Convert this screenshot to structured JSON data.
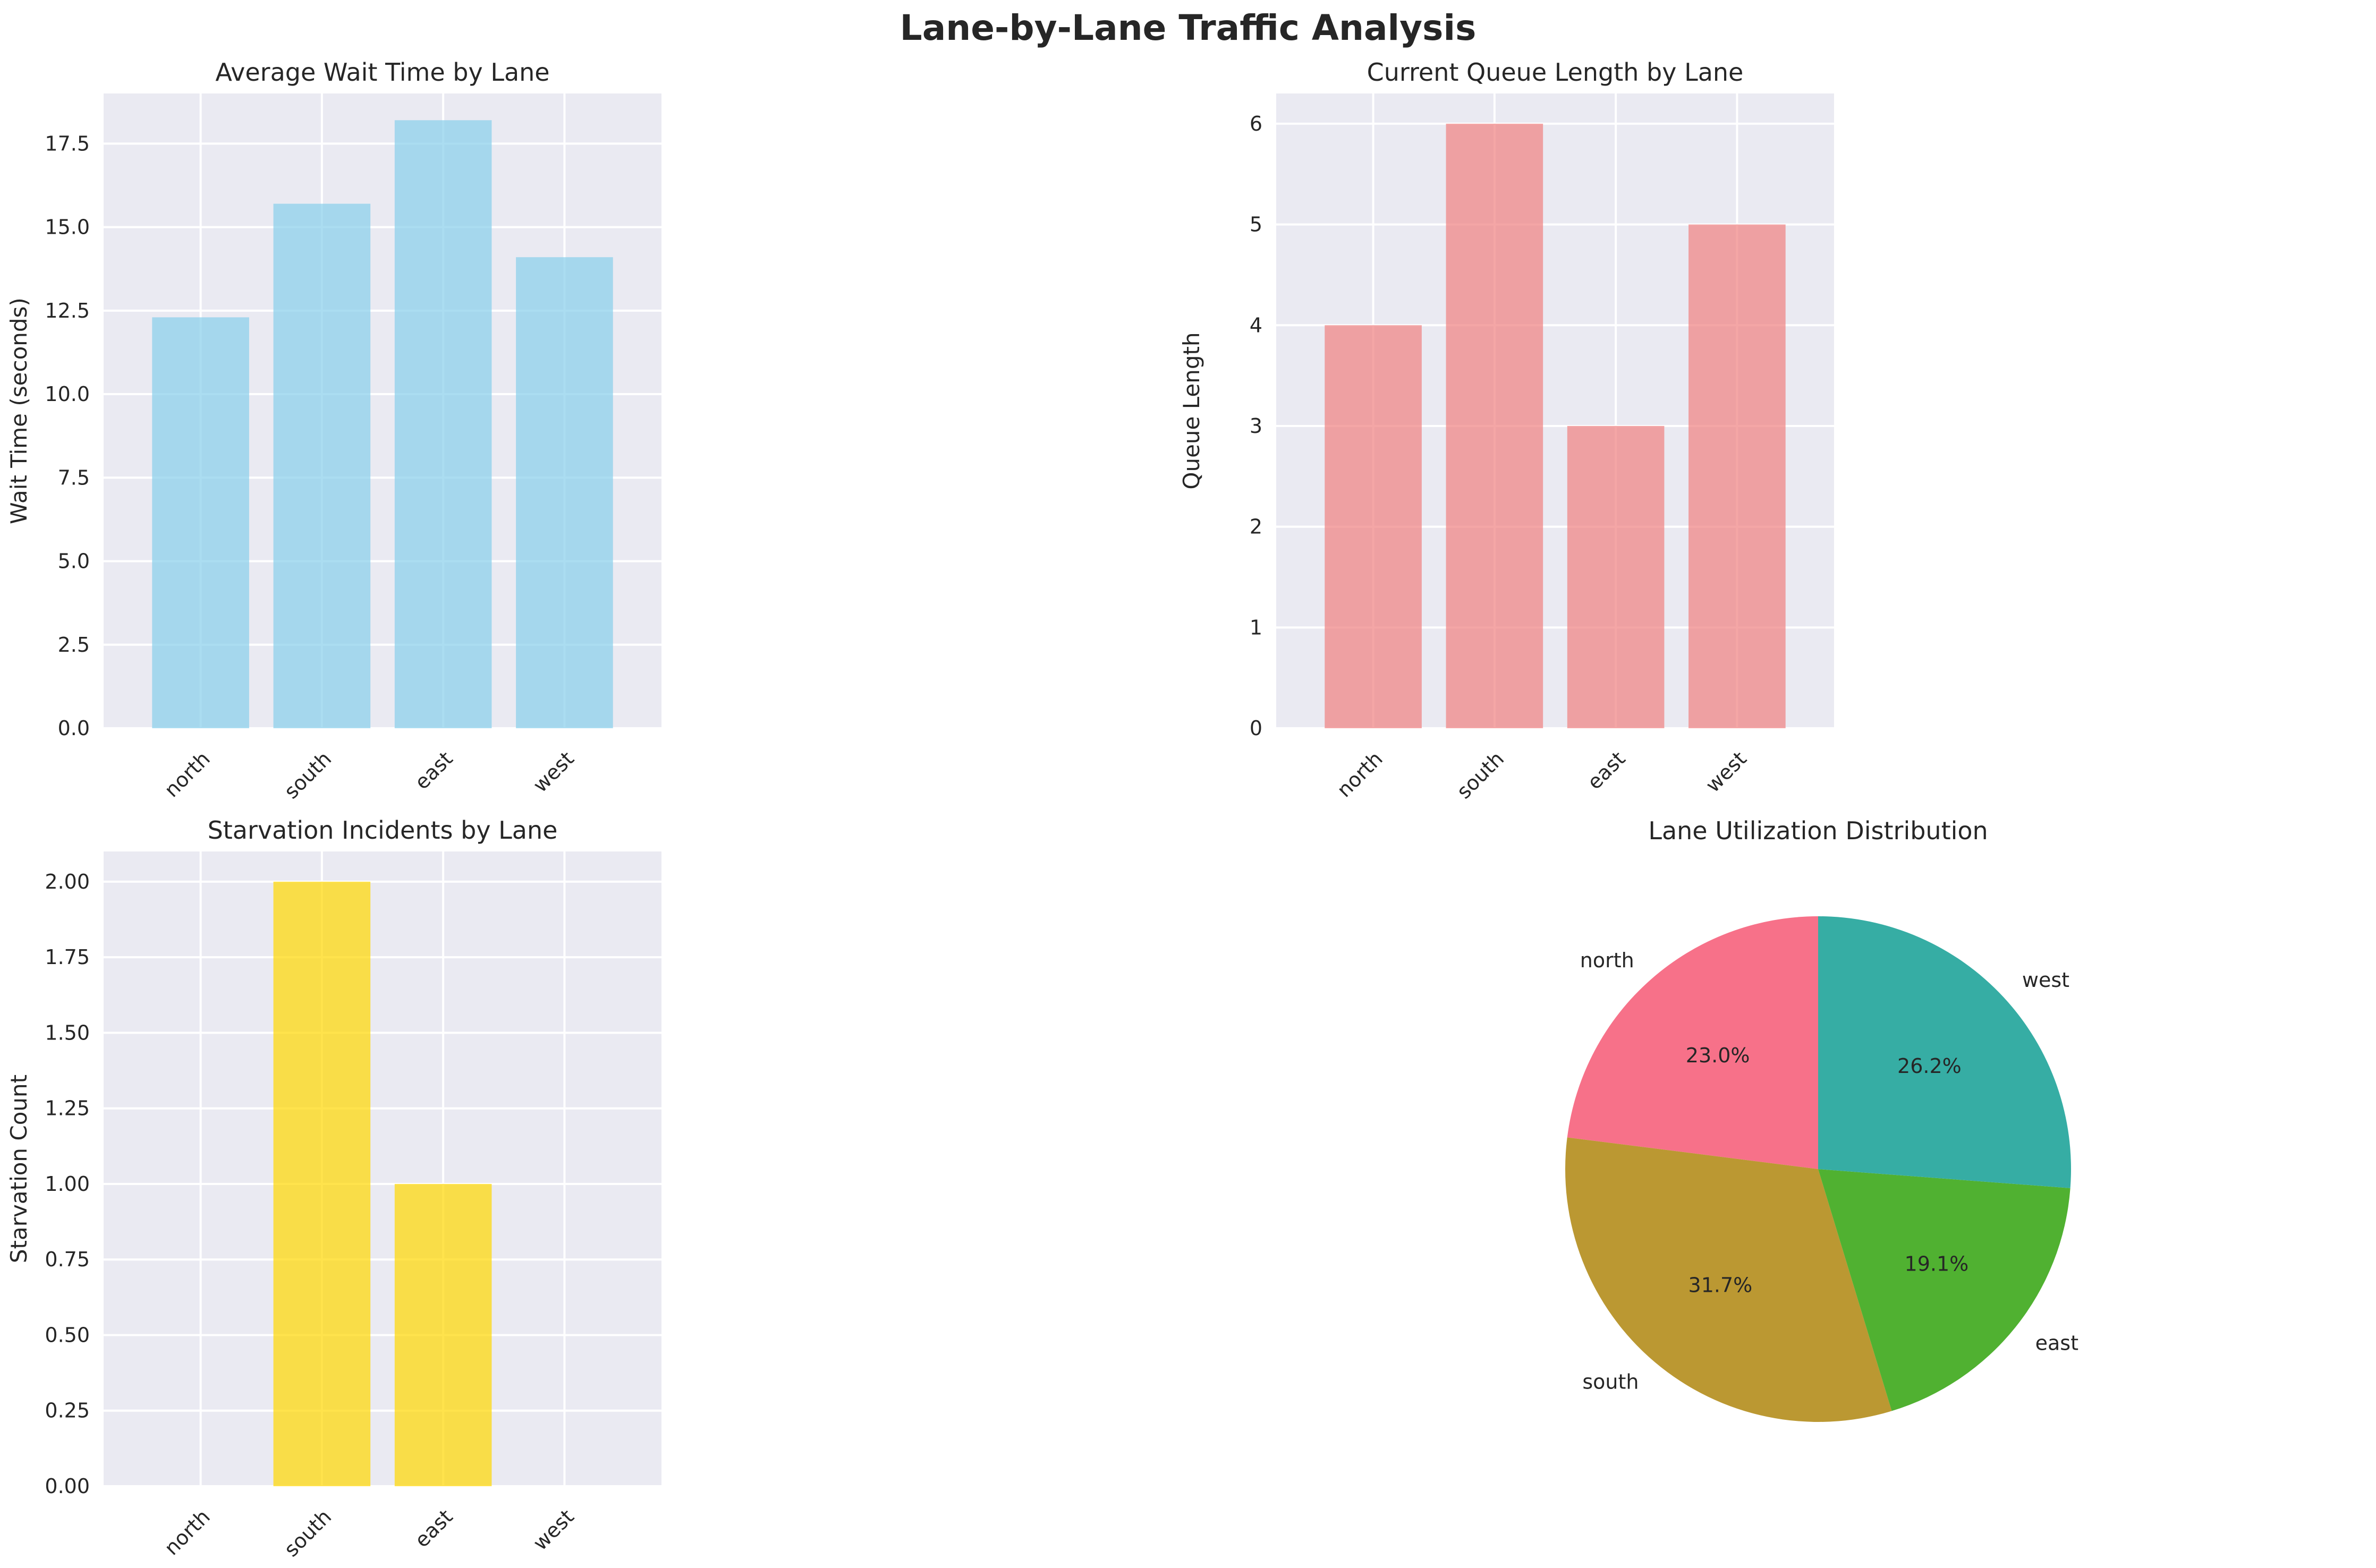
{
  "figure_title": "Lane-by-Lane Traffic Analysis",
  "chart_data": [
    {
      "type": "bar",
      "title": "Average Wait Time by Lane",
      "xlabel": "",
      "ylabel": "Wait Time (seconds)",
      "categories": [
        "north",
        "south",
        "east",
        "west"
      ],
      "values": [
        12.3,
        15.7,
        18.2,
        14.1
      ],
      "ylim": [
        0,
        19.0
      ],
      "yticks": [
        0.0,
        2.5,
        5.0,
        7.5,
        10.0,
        12.5,
        15.0,
        17.5
      ],
      "ytick_labels": [
        "0.0",
        "2.5",
        "5.0",
        "7.5",
        "10.0",
        "12.5",
        "15.0",
        "17.5"
      ],
      "color": "#87ceeb",
      "grid": true
    },
    {
      "type": "bar",
      "title": "Current Queue Length by Lane",
      "xlabel": "",
      "ylabel": "Queue Length",
      "categories": [
        "north",
        "south",
        "east",
        "west"
      ],
      "values": [
        4,
        6,
        3,
        5
      ],
      "ylim": [
        0,
        6.3
      ],
      "yticks": [
        0,
        1,
        2,
        3,
        4,
        5,
        6
      ],
      "ytick_labels": [
        "0",
        "1",
        "2",
        "3",
        "4",
        "5",
        "6"
      ],
      "color": "#f08080",
      "grid": true
    },
    {
      "type": "bar",
      "title": "Starvation Incidents by Lane",
      "xlabel": "",
      "ylabel": "Starvation Count",
      "categories": [
        "north",
        "south",
        "east",
        "west"
      ],
      "values": [
        0,
        2,
        1,
        0
      ],
      "ylim": [
        0,
        2.1
      ],
      "yticks": [
        0.0,
        0.25,
        0.5,
        0.75,
        1.0,
        1.25,
        1.5,
        1.75,
        2.0
      ],
      "ytick_labels": [
        "0.00",
        "0.25",
        "0.50",
        "0.75",
        "1.00",
        "1.25",
        "1.50",
        "1.75",
        "2.00"
      ],
      "color": "#ffd700",
      "grid": true
    },
    {
      "type": "pie",
      "title": "Lane Utilization Distribution",
      "labels": [
        "north",
        "south",
        "east",
        "west"
      ],
      "values": [
        23.0,
        31.7,
        19.1,
        26.2
      ],
      "pct_labels": [
        "23.0%",
        "31.7%",
        "19.1%",
        "26.2%"
      ],
      "colors": [
        "#f77189",
        "#bb9832",
        "#50b131",
        "#36ada4"
      ],
      "start_angle": 90
    }
  ]
}
